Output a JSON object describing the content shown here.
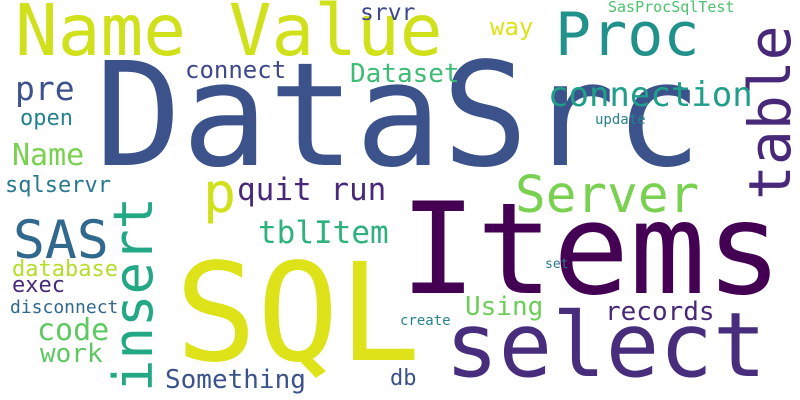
{
  "words": [
    {
      "text": "DataSrc"
    },
    {
      "text": "Name Value"
    },
    {
      "text": "Proc"
    },
    {
      "text": "table"
    },
    {
      "text": "Items"
    },
    {
      "text": "SQL"
    },
    {
      "text": "select"
    },
    {
      "text": "insert"
    },
    {
      "text": "SAS"
    },
    {
      "text": "p"
    },
    {
      "text": "quit run"
    },
    {
      "text": "Server"
    },
    {
      "text": "tblItem"
    },
    {
      "text": "connect"
    },
    {
      "text": "Dataset"
    },
    {
      "text": "connection"
    },
    {
      "text": "srvr"
    },
    {
      "text": "way"
    },
    {
      "text": "SasProcSqlTest"
    },
    {
      "text": "pre"
    },
    {
      "text": "open"
    },
    {
      "text": "Name"
    },
    {
      "text": "sqlservr"
    },
    {
      "text": "update"
    },
    {
      "text": "database"
    },
    {
      "text": "exec"
    },
    {
      "text": "disconnect"
    },
    {
      "text": "code"
    },
    {
      "text": "work"
    },
    {
      "text": "Using"
    },
    {
      "text": "records"
    },
    {
      "text": "create"
    },
    {
      "text": "set"
    },
    {
      "text": "Something"
    },
    {
      "text": "db"
    }
  ]
}
